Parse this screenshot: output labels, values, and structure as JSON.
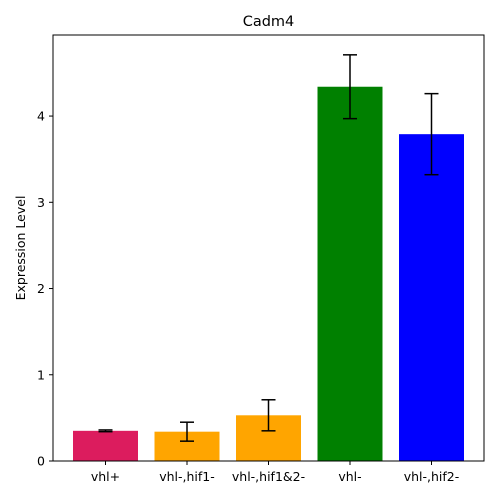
{
  "chart_data": {
    "type": "bar",
    "title": "Cadm4",
    "xlabel": "",
    "ylabel": "Expression Level",
    "categories": [
      "vhl+",
      "vhl-,hif1-",
      "vhl-,hif1&2-",
      "vhl-",
      "vhl-,hif2-"
    ],
    "values": [
      0.35,
      0.34,
      0.53,
      4.34,
      3.79
    ],
    "errors": [
      0.01,
      0.11,
      0.18,
      0.37,
      0.47
    ],
    "colors": [
      "#dc1c5e",
      "#ffa500",
      "#ffa500",
      "#008000",
      "#0000ff"
    ],
    "ylim": [
      0,
      4.94
    ],
    "yticks": [
      0,
      1,
      2,
      3,
      4
    ],
    "grid": false,
    "legend": false
  }
}
